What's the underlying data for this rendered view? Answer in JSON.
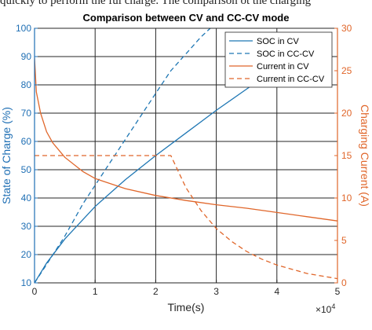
{
  "caption_fragment": "quickly to perform the ful charge. The comparison ot the charging",
  "chart_data": {
    "type": "line",
    "title": "Comparison between CV and CC-CV mode",
    "xlabel": "Time(s)",
    "ylabel_left": "State of Charge (%)",
    "ylabel_right": "Charging Current (A)",
    "x_exponent_label": "×10",
    "x_exponent_power": "4",
    "xlim": [
      0,
      50000
    ],
    "ylim_left": [
      10,
      100
    ],
    "ylim_right": [
      0,
      30
    ],
    "xticks": [
      0,
      10000,
      20000,
      30000,
      40000,
      50000
    ],
    "xtick_labels": [
      "0",
      "1",
      "2",
      "3",
      "4",
      "5"
    ],
    "yticks_left": [
      10,
      20,
      30,
      40,
      50,
      60,
      70,
      80,
      90,
      100
    ],
    "yticks_right": [
      0,
      5,
      10,
      15,
      20,
      25,
      30
    ],
    "grid": true,
    "legend_position": "top-right",
    "colors": {
      "soc": "#1f77b4",
      "current": "#e0662a",
      "left_axis": "#1f6fb4",
      "right_axis": "#e0662a"
    },
    "series": [
      {
        "name": "SOC in CV",
        "axis": "left",
        "style": "solid",
        "color": "#1f77b4",
        "x": [
          0,
          2000,
          5000,
          10000,
          15000,
          20000,
          25000,
          30000,
          35000,
          40000,
          42000
        ],
        "y": [
          10,
          17,
          25.5,
          37,
          46.5,
          55,
          63,
          71,
          78.5,
          86,
          89
        ]
      },
      {
        "name": "SOC in CC-CV",
        "axis": "left",
        "style": "dashed",
        "color": "#1f77b4",
        "x": [
          0,
          2000,
          5000,
          8000,
          12000,
          16000,
          20000,
          22500,
          25000,
          27500,
          29000
        ],
        "y": [
          10,
          16.5,
          26.5,
          38,
          51,
          64,
          77,
          85,
          91,
          97,
          100
        ]
      },
      {
        "name": "Current in CV",
        "axis": "right",
        "style": "solid",
        "color": "#e0662a",
        "x": [
          0,
          300,
          1000,
          2000,
          3000,
          5000,
          8000,
          10000,
          15000,
          20000,
          25000,
          30000,
          35000,
          40000,
          45000,
          50000
        ],
        "y": [
          26.5,
          22.5,
          20,
          17.8,
          16.5,
          14.8,
          13.1,
          12.3,
          11.1,
          10.3,
          9.7,
          9.2,
          8.8,
          8.3,
          7.8,
          7.3
        ]
      },
      {
        "name": "Current in CC-CV",
        "axis": "right",
        "style": "dashed",
        "color": "#e0662a",
        "x": [
          0,
          22500,
          25000,
          27500,
          30000,
          32500,
          35000,
          37500,
          40000,
          42500,
          45000,
          47500,
          50000
        ],
        "y": [
          15,
          15,
          11.2,
          8.5,
          6.4,
          4.9,
          3.7,
          2.8,
          2.1,
          1.6,
          1.1,
          0.8,
          0.5
        ]
      }
    ]
  }
}
